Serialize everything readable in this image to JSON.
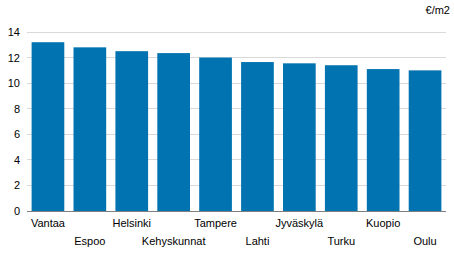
{
  "chart_data": {
    "type": "bar",
    "ylabel": "€/m2",
    "categories": [
      "Vantaa",
      "Espoo",
      "Helsinki",
      "Kehyskunnat",
      "Tampere",
      "Lahti",
      "Jyväskylä",
      "Turku",
      "Kuopio",
      "Oulu"
    ],
    "values": [
      13.2,
      12.8,
      12.5,
      12.35,
      12.0,
      11.65,
      11.55,
      11.4,
      11.1,
      11.0
    ],
    "color": "#0073b0",
    "ylim": [
      0,
      14
    ],
    "yticks": [
      0,
      2,
      4,
      6,
      8,
      10,
      12,
      14
    ],
    "grid": true
  }
}
